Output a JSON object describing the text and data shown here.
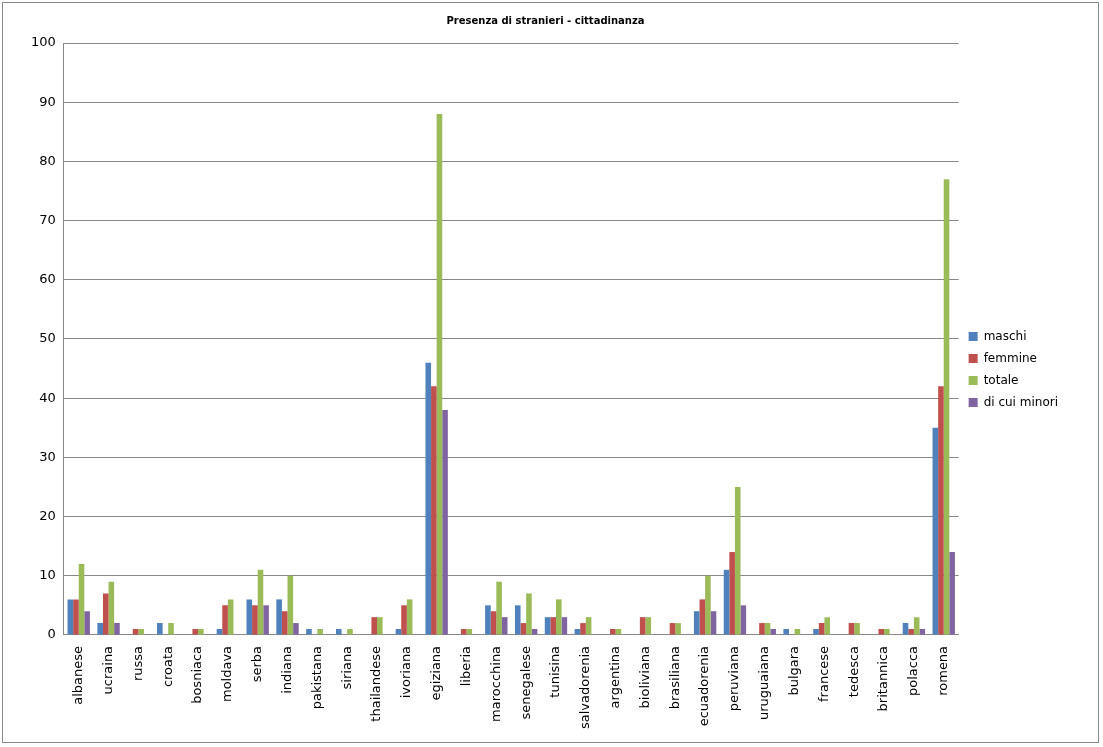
{
  "chart_data": {
    "type": "bar",
    "title": "Presenza di stranieri - cittadinanza",
    "categories": [
      "albanese",
      "ucraina",
      "russa",
      "croata",
      "bosniaca",
      "moldava",
      "serba",
      "indiana",
      "pakistana",
      "siriana",
      "thailandese",
      "ivoriana",
      "egiziana",
      "liberia",
      "marocchina",
      "senegalese",
      "tunisina",
      "salvadorenia",
      "argentina",
      "bioliviana",
      "brasiliana",
      "ecuadorenia",
      "peruviana",
      "uruguaiana",
      "bulgara",
      "francese",
      "tedesca",
      "britannica",
      "polacca",
      "romena"
    ],
    "series": [
      {
        "name": "maschi",
        "color": "#4f81bd",
        "values": [
          6,
          2,
          0,
          2,
          0,
          1,
          6,
          6,
          1,
          1,
          0,
          1,
          46,
          0,
          5,
          5,
          3,
          1,
          0,
          0,
          0,
          4,
          11,
          0,
          1,
          1,
          0,
          0,
          2,
          35
        ]
      },
      {
        "name": "femmine",
        "color": "#c0504d",
        "values": [
          6,
          7,
          1,
          0,
          1,
          5,
          5,
          4,
          0,
          0,
          3,
          5,
          42,
          1,
          4,
          2,
          3,
          2,
          1,
          3,
          2,
          6,
          14,
          2,
          0,
          2,
          2,
          1,
          1,
          42
        ]
      },
      {
        "name": "totale",
        "color": "#9bbb59",
        "values": [
          12,
          9,
          1,
          2,
          1,
          6,
          11,
          10,
          1,
          1,
          3,
          6,
          88,
          1,
          9,
          7,
          6,
          3,
          1,
          3,
          2,
          10,
          25,
          2,
          1,
          3,
          2,
          1,
          3,
          77
        ]
      },
      {
        "name": "di cui minori",
        "color": "#8064a2",
        "values": [
          4,
          2,
          0,
          0,
          0,
          0,
          5,
          2,
          0,
          0,
          0,
          0,
          38,
          0,
          3,
          1,
          3,
          0,
          0,
          0,
          0,
          4,
          5,
          1,
          0,
          0,
          0,
          0,
          1,
          14
        ]
      }
    ],
    "ylim": [
      0,
      100
    ],
    "yticks": [
      0,
      10,
      20,
      30,
      40,
      50,
      60,
      70,
      80,
      90,
      100
    ],
    "grid": "y",
    "legend": "right"
  }
}
